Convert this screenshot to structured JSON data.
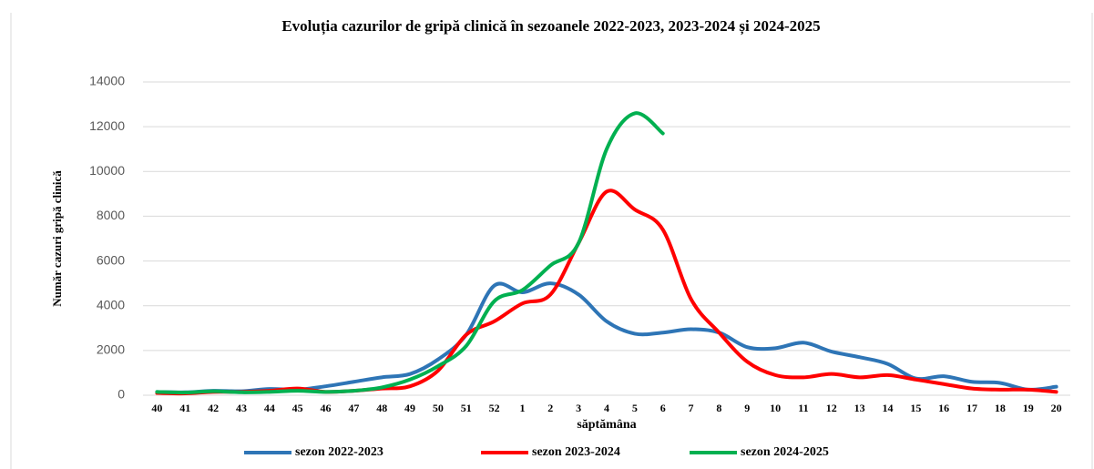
{
  "chart_data": {
    "type": "line",
    "title": "Evoluția cazurilor de gripă clinică în sezoanele 2022-2023, 2023-2024 și 2024-2025",
    "x_label": "săptămâna",
    "y_label": "Număr cazuri gripă clinică",
    "categories": [
      "40",
      "41",
      "42",
      "43",
      "44",
      "45",
      "46",
      "47",
      "48",
      "49",
      "50",
      "51",
      "52",
      "1",
      "2",
      "3",
      "4",
      "5",
      "6",
      "7",
      "8",
      "9",
      "10",
      "11",
      "12",
      "13",
      "14",
      "15",
      "16",
      "17",
      "18",
      "19",
      "20"
    ],
    "ylim": [
      0,
      14000
    ],
    "yticks": [
      0,
      2000,
      4000,
      6000,
      8000,
      10000,
      12000,
      14000
    ],
    "grid": true,
    "legend": "bottom",
    "series": [
      {
        "name": "sezon 2022-2023",
        "color": "#2e75b6",
        "values": [
          150,
          130,
          200,
          180,
          280,
          250,
          400,
          600,
          800,
          950,
          1600,
          2700,
          4900,
          4600,
          5000,
          4500,
          3300,
          2750,
          2800,
          2950,
          2800,
          2150,
          2100,
          2350,
          1950,
          1700,
          1400,
          750,
          850,
          600,
          550,
          250,
          380
        ]
      },
      {
        "name": "sezon 2023-2024",
        "color": "#ff0000",
        "values": [
          100,
          80,
          150,
          150,
          200,
          300,
          150,
          200,
          300,
          400,
          1100,
          2700,
          3300,
          4100,
          4500,
          6800,
          9100,
          8300,
          7400,
          4300,
          2800,
          1500,
          900,
          800,
          950,
          800,
          900,
          700,
          500,
          300,
          250,
          250,
          150
        ]
      },
      {
        "name": "sezon 2024-2025",
        "color": "#00b050",
        "values": [
          150,
          120,
          180,
          130,
          150,
          200,
          150,
          200,
          350,
          700,
          1300,
          2200,
          4200,
          4700,
          5800,
          6800,
          11000,
          12600,
          11700,
          null,
          null,
          null,
          null,
          null,
          null,
          null,
          null,
          null,
          null,
          null,
          null,
          null,
          null
        ]
      }
    ]
  }
}
